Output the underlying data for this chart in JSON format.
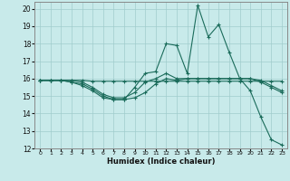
{
  "title": "",
  "xlabel": "Humidex (Indice chaleur)",
  "bg_color": "#c8eaea",
  "grid_color": "#a0cccc",
  "line_color": "#1a6b5a",
  "xlim": [
    -0.5,
    23.5
  ],
  "ylim": [
    12,
    20.4
  ],
  "xticks": [
    0,
    1,
    2,
    3,
    4,
    5,
    6,
    7,
    8,
    9,
    10,
    11,
    12,
    13,
    14,
    15,
    16,
    17,
    18,
    19,
    20,
    21,
    22,
    23
  ],
  "yticks": [
    12,
    13,
    14,
    15,
    16,
    17,
    18,
    19,
    20
  ],
  "line1_x": [
    0,
    1,
    2,
    3,
    4,
    5,
    6,
    7,
    8,
    9,
    10,
    11,
    12,
    13,
    14,
    15,
    16,
    17,
    18,
    19,
    20,
    21,
    22,
    23
  ],
  "line1_y": [
    15.9,
    15.9,
    15.9,
    15.9,
    15.9,
    15.85,
    15.85,
    15.85,
    15.85,
    15.85,
    15.85,
    15.85,
    15.85,
    15.85,
    15.85,
    15.85,
    15.85,
    15.85,
    15.85,
    15.85,
    15.85,
    15.85,
    15.85,
    15.85
  ],
  "line2_x": [
    0,
    1,
    2,
    3,
    4,
    5,
    6,
    7,
    8,
    9,
    10,
    11,
    12,
    13,
    14,
    15,
    16,
    17,
    18,
    19,
    20,
    21,
    22,
    23
  ],
  "line2_y": [
    15.9,
    15.9,
    15.9,
    15.8,
    15.7,
    15.4,
    15.0,
    14.8,
    14.8,
    15.5,
    16.3,
    16.4,
    18.0,
    17.9,
    16.3,
    20.2,
    18.4,
    19.1,
    17.5,
    16.0,
    15.3,
    13.8,
    12.5,
    12.2
  ],
  "line3_x": [
    0,
    1,
    2,
    3,
    4,
    5,
    6,
    7,
    8,
    9,
    10,
    11,
    12,
    13,
    14,
    15,
    16,
    17,
    18,
    19,
    20,
    21,
    22,
    23
  ],
  "line3_y": [
    15.9,
    15.9,
    15.9,
    15.8,
    15.6,
    15.3,
    14.9,
    14.8,
    14.8,
    14.9,
    15.2,
    15.7,
    16.0,
    15.9,
    16.0,
    16.0,
    16.0,
    16.0,
    16.0,
    16.0,
    16.0,
    15.8,
    15.5,
    15.2
  ],
  "line4_x": [
    0,
    1,
    2,
    3,
    4,
    5,
    6,
    7,
    8,
    9,
    10,
    11,
    12,
    13,
    14,
    15,
    16,
    17,
    18,
    19,
    20,
    21,
    22,
    23
  ],
  "line4_y": [
    15.9,
    15.9,
    15.9,
    15.9,
    15.8,
    15.5,
    15.1,
    14.9,
    14.9,
    15.2,
    15.8,
    16.0,
    16.3,
    16.0,
    16.0,
    16.0,
    16.0,
    16.0,
    16.0,
    16.0,
    16.0,
    15.9,
    15.6,
    15.3
  ]
}
